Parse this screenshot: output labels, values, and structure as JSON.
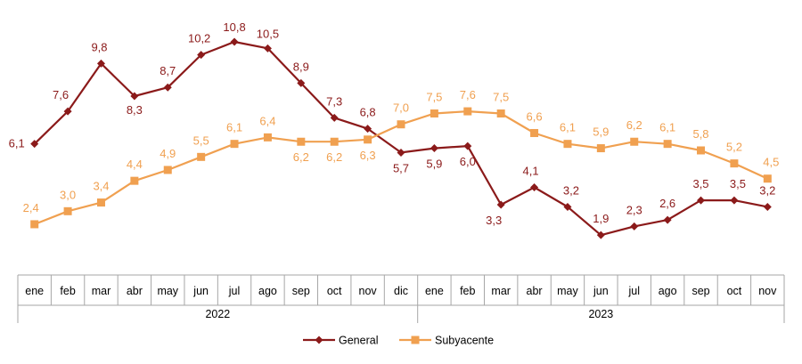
{
  "chart_data": {
    "type": "line",
    "categories": [
      "ene",
      "feb",
      "mar",
      "abr",
      "may",
      "jun",
      "jul",
      "ago",
      "sep",
      "oct",
      "nov",
      "dic",
      "ene",
      "feb",
      "mar",
      "abr",
      "may",
      "jun",
      "jul",
      "ago",
      "sep",
      "oct",
      "nov"
    ],
    "groups": [
      {
        "label": "2022",
        "start": 0,
        "end": 11
      },
      {
        "label": "2023",
        "start": 12,
        "end": 22
      }
    ],
    "series": [
      {
        "name": "General",
        "color": "#8b1a1a",
        "marker": "diamond",
        "values": [
          6.1,
          7.6,
          9.8,
          8.3,
          8.7,
          10.2,
          10.8,
          10.5,
          8.9,
          7.3,
          6.8,
          5.7,
          5.9,
          6.0,
          3.3,
          4.1,
          3.2,
          1.9,
          2.3,
          2.6,
          3.5,
          3.5,
          3.2
        ],
        "labels": [
          "6,1",
          "7,6",
          "9,8",
          "8,3",
          "8,7",
          "10,2",
          "10,8",
          "10,5",
          "8,9",
          "7,3",
          "6,8",
          "5,7",
          "5,9",
          "6,0",
          "3,3",
          "4,1",
          "3,2",
          "1,9",
          "2,3",
          "2,6",
          "3,5",
          "3,5",
          "3,2"
        ]
      },
      {
        "name": "Subyacente",
        "color": "#f0a050",
        "marker": "square",
        "values": [
          2.4,
          3.0,
          3.4,
          4.4,
          4.9,
          5.5,
          6.1,
          6.4,
          6.2,
          6.2,
          6.3,
          7.0,
          7.5,
          7.6,
          7.5,
          6.6,
          6.1,
          5.9,
          6.2,
          6.1,
          5.8,
          5.2,
          4.5
        ],
        "labels": [
          "2,4",
          "3,0",
          "3,4",
          "4,4",
          "4,9",
          "5,5",
          "6,1",
          "6,4",
          "6,2",
          "6,2",
          "6,3",
          "7,0",
          "7,5",
          "7,6",
          "7,5",
          "6,6",
          "6,1",
          "5,9",
          "6,2",
          "6,1",
          "5,8",
          "5,2",
          "4,5"
        ]
      }
    ],
    "ylim": [
      1.0,
      11.0
    ],
    "grid": false,
    "legend_position": "bottom-center"
  }
}
